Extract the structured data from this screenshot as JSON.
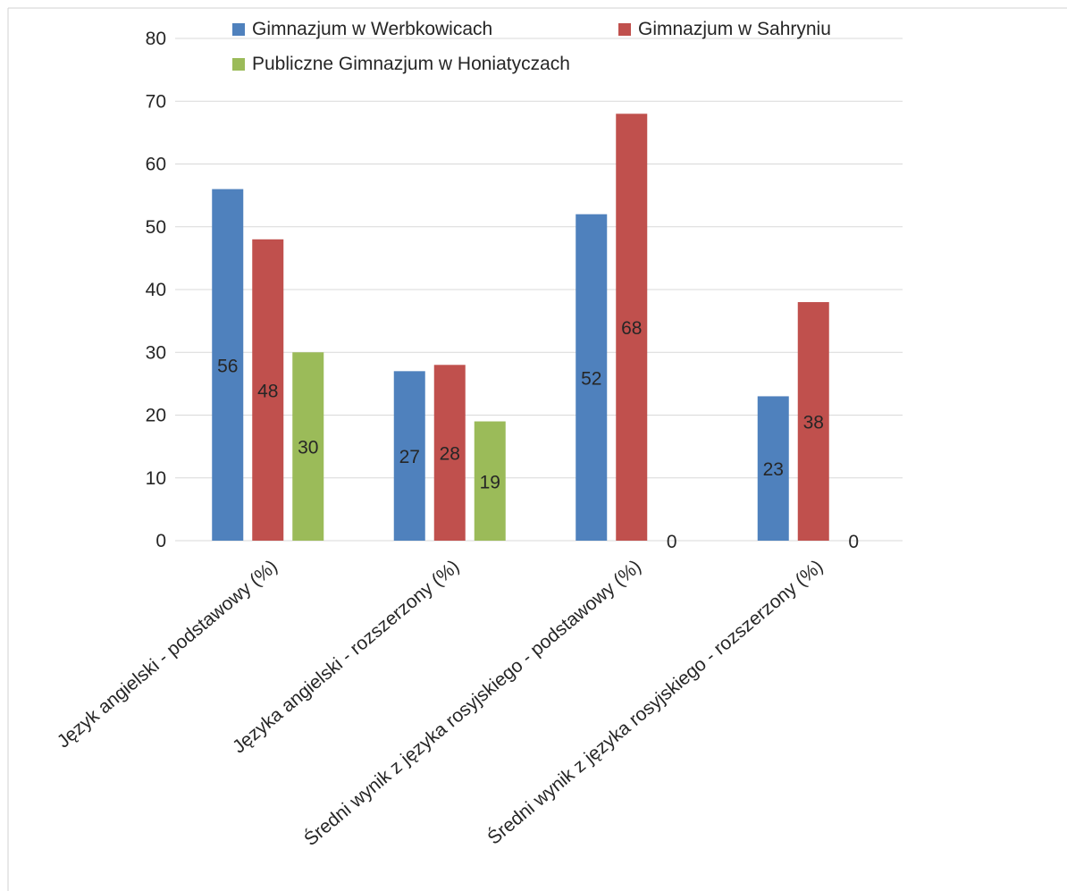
{
  "chart_data": {
    "type": "bar",
    "categories": [
      "Język angielski - podstawowy (%)",
      "Języka angielski - rozszerzony (%)",
      "Średni wynik z języka rosyjskiego - podstawowy (%)",
      "Średni wynik z języka rosyjskiego - rozszerzony (%)"
    ],
    "series": [
      {
        "name": "Gimnazjum w Werbkowicach",
        "color": "#4f81bd",
        "values": [
          56,
          27,
          52,
          23
        ]
      },
      {
        "name": "Gimnazjum w Sahryniu",
        "color": "#c0504d",
        "values": [
          48,
          28,
          68,
          38
        ]
      },
      {
        "name": "Publiczne Gimnazjum w Honiatyczach",
        "color": "#9bbb59",
        "values": [
          30,
          19,
          0,
          0
        ]
      }
    ],
    "ylim": [
      0,
      80
    ],
    "yticks": [
      0,
      10,
      20,
      30,
      40,
      50,
      60,
      70,
      80
    ],
    "grid": true,
    "legend": "top",
    "title": "",
    "xlabel": "",
    "ylabel": ""
  }
}
